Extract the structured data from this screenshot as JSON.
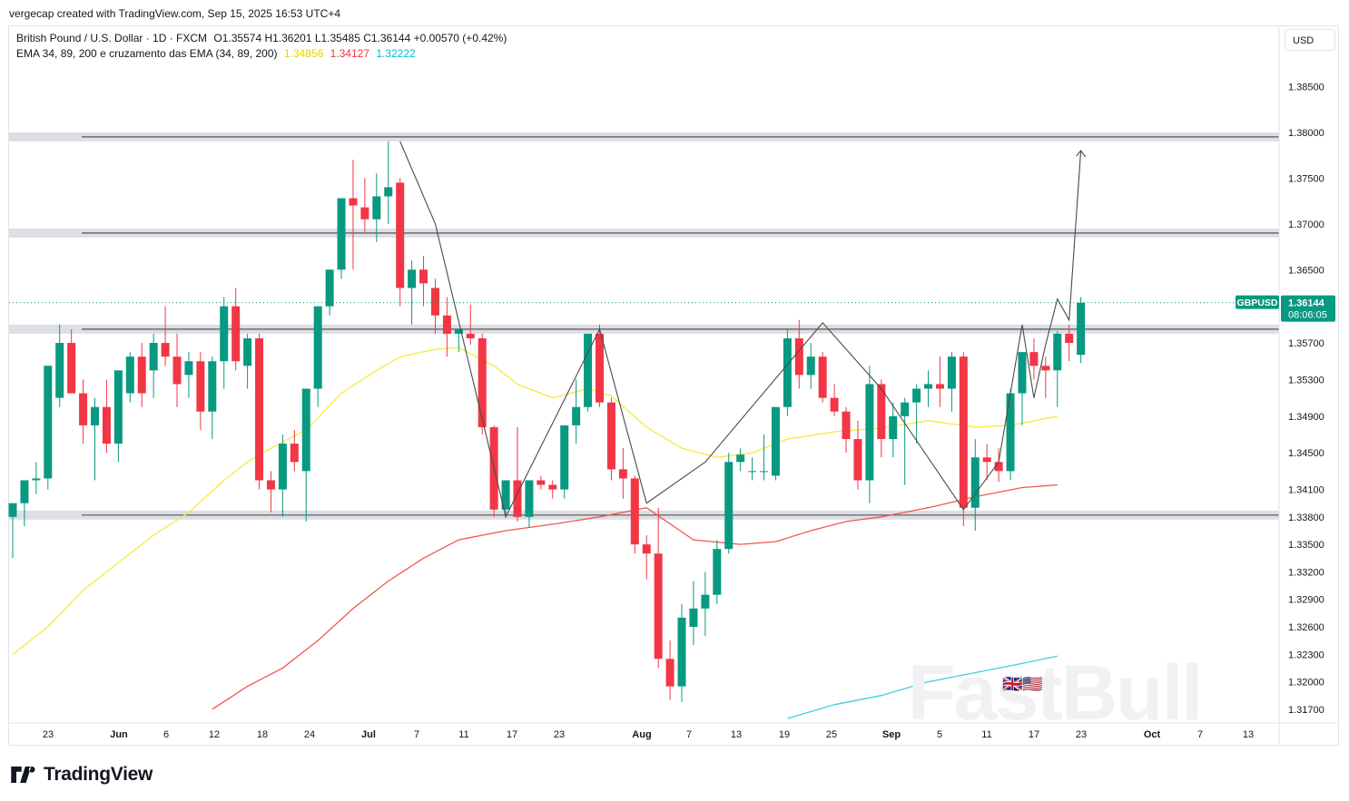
{
  "caption": "vergecap created with TradingView.com, Sep 15, 2025 16:53 UTC+4",
  "legend": {
    "symbol": "British Pound / U.S. Dollar · 1D · FXCM",
    "ohlc": "O1.35574  H1.36201  L1.35485  C1.36144  +0.00570 (+0.42%)",
    "indicator": "EMA 34, 89, 200 e cruzamento das EMA (34, 89, 200)",
    "ema34": "1.34856",
    "ema89": "1.34127",
    "ema200": "1.32222"
  },
  "currency_button": "USD",
  "price_label": {
    "ticker": "GBPUSD",
    "price": "1.36144",
    "countdown": "08:06:05"
  },
  "brand": "TradingView",
  "watermark": "FastBull",
  "colors": {
    "up": "#089981",
    "down": "#f23645",
    "ema34": "#f5ea3c",
    "ema89": "#f0574f",
    "ema200": "#3fd0d9",
    "zone": "#d1d4dc"
  },
  "chart_data": {
    "type": "candlestick",
    "ylim": [
      1.3155,
      1.3885
    ],
    "y_ticks": [
      "1.38500",
      "1.38000",
      "1.37500",
      "1.37000",
      "1.36500",
      "1.36144",
      "1.35700",
      "1.35300",
      "1.34900",
      "1.34500",
      "1.34100",
      "1.33800",
      "1.33500",
      "1.33200",
      "1.32900",
      "1.32600",
      "1.32300",
      "1.32000",
      "1.31700"
    ],
    "x_ticks": [
      "23",
      "Jun",
      "6",
      "12",
      "18",
      "24",
      "Jul",
      "7",
      "11",
      "17",
      "23",
      "Aug",
      "7",
      "13",
      "19",
      "25",
      "Sep",
      "5",
      "11",
      "17",
      "23",
      "Oct",
      "7",
      "13"
    ],
    "zones": [
      1.3795,
      1.369,
      1.3585,
      1.3382
    ],
    "candles": [
      [
        1.338,
        1.3395,
        1.3335,
        1.3395
      ],
      [
        1.3395,
        1.342,
        1.337,
        1.342
      ],
      [
        1.342,
        1.344,
        1.3405,
        1.3422
      ],
      [
        1.3422,
        1.3545,
        1.341,
        1.3545
      ],
      [
        1.351,
        1.359,
        1.35,
        1.357
      ],
      [
        1.357,
        1.3585,
        1.352,
        1.3515
      ],
      [
        1.3515,
        1.353,
        1.346,
        1.348
      ],
      [
        1.348,
        1.351,
        1.342,
        1.35
      ],
      [
        1.35,
        1.353,
        1.345,
        1.346
      ],
      [
        1.346,
        1.354,
        1.344,
        1.354
      ],
      [
        1.3515,
        1.356,
        1.3505,
        1.3555
      ],
      [
        1.3555,
        1.357,
        1.35,
        1.3515
      ],
      [
        1.354,
        1.358,
        1.351,
        1.357
      ],
      [
        1.357,
        1.361,
        1.3545,
        1.3555
      ],
      [
        1.3555,
        1.358,
        1.35,
        1.3525
      ],
      [
        1.3535,
        1.356,
        1.351,
        1.355
      ],
      [
        1.355,
        1.356,
        1.3475,
        1.3495
      ],
      [
        1.3495,
        1.3555,
        1.3465,
        1.355
      ],
      [
        1.355,
        1.362,
        1.352,
        1.361
      ],
      [
        1.361,
        1.363,
        1.354,
        1.355
      ],
      [
        1.3545,
        1.358,
        1.352,
        1.3575
      ],
      [
        1.3575,
        1.358,
        1.341,
        1.342
      ],
      [
        1.342,
        1.343,
        1.3385,
        1.341
      ],
      [
        1.341,
        1.347,
        1.338,
        1.346
      ],
      [
        1.346,
        1.3475,
        1.343,
        1.344
      ],
      [
        1.343,
        1.352,
        1.3375,
        1.352
      ],
      [
        1.352,
        1.361,
        1.35,
        1.361
      ],
      [
        1.361,
        1.365,
        1.36,
        1.365
      ],
      [
        1.365,
        1.3725,
        1.364,
        1.3728
      ],
      [
        1.3728,
        1.377,
        1.365,
        1.372
      ],
      [
        1.3718,
        1.375,
        1.369,
        1.3705
      ],
      [
        1.3705,
        1.3755,
        1.368,
        1.373
      ],
      [
        1.373,
        1.379,
        1.37,
        1.374
      ],
      [
        1.3745,
        1.375,
        1.361,
        1.363
      ],
      [
        1.363,
        1.366,
        1.359,
        1.365
      ],
      [
        1.365,
        1.3665,
        1.361,
        1.3635
      ],
      [
        1.363,
        1.364,
        1.358,
        1.36
      ],
      [
        1.36,
        1.362,
        1.3555,
        1.358
      ],
      [
        1.358,
        1.3585,
        1.356,
        1.3585
      ],
      [
        1.358,
        1.3612,
        1.3568,
        1.3575
      ],
      [
        1.3575,
        1.358,
        1.347,
        1.3478
      ],
      [
        1.3478,
        1.348,
        1.338,
        1.3388
      ],
      [
        1.3388,
        1.342,
        1.338,
        1.342
      ],
      [
        1.342,
        1.3478,
        1.3375,
        1.338
      ],
      [
        1.338,
        1.342,
        1.3368,
        1.342
      ],
      [
        1.342,
        1.3425,
        1.341,
        1.3415
      ],
      [
        1.3415,
        1.342,
        1.34,
        1.341
      ],
      [
        1.341,
        1.348,
        1.34,
        1.348
      ],
      [
        1.348,
        1.353,
        1.346,
        1.35
      ],
      [
        1.35,
        1.358,
        1.3495,
        1.358
      ],
      [
        1.358,
        1.359,
        1.35,
        1.3505
      ],
      [
        1.3505,
        1.351,
        1.342,
        1.3432
      ],
      [
        1.3432,
        1.3455,
        1.34,
        1.3422
      ],
      [
        1.3422,
        1.3425,
        1.334,
        1.335
      ],
      [
        1.335,
        1.336,
        1.3312,
        1.334
      ],
      [
        1.334,
        1.339,
        1.3215,
        1.3225
      ],
      [
        1.3225,
        1.3245,
        1.318,
        1.3195
      ],
      [
        1.3195,
        1.3285,
        1.3178,
        1.327
      ],
      [
        1.326,
        1.331,
        1.324,
        1.328
      ],
      [
        1.328,
        1.332,
        1.325,
        1.3295
      ],
      [
        1.3295,
        1.3355,
        1.3285,
        1.3345
      ],
      [
        1.3345,
        1.345,
        1.334,
        1.344
      ],
      [
        1.344,
        1.3455,
        1.343,
        1.3448
      ],
      [
        1.343,
        1.3445,
        1.342,
        1.343
      ],
      [
        1.343,
        1.347,
        1.342,
        1.343
      ],
      [
        1.3425,
        1.35,
        1.342,
        1.35
      ],
      [
        1.35,
        1.3585,
        1.349,
        1.3575
      ],
      [
        1.3575,
        1.3595,
        1.352,
        1.3535
      ],
      [
        1.3535,
        1.357,
        1.352,
        1.3555
      ],
      [
        1.3555,
        1.356,
        1.3505,
        1.351
      ],
      [
        1.351,
        1.3525,
        1.349,
        1.3495
      ],
      [
        1.3495,
        1.35,
        1.345,
        1.3465
      ],
      [
        1.3465,
        1.3485,
        1.341,
        1.342
      ],
      [
        1.342,
        1.3545,
        1.3395,
        1.3525
      ],
      [
        1.3525,
        1.353,
        1.3445,
        1.3465
      ],
      [
        1.3465,
        1.3505,
        1.3445,
        1.349
      ],
      [
        1.349,
        1.351,
        1.3415,
        1.3505
      ],
      [
        1.3505,
        1.3525,
        1.346,
        1.352
      ],
      [
        1.352,
        1.354,
        1.35,
        1.3525
      ],
      [
        1.3525,
        1.3555,
        1.35,
        1.352
      ],
      [
        1.352,
        1.356,
        1.3495,
        1.3555
      ],
      [
        1.3555,
        1.356,
        1.337,
        1.339
      ],
      [
        1.339,
        1.3465,
        1.3365,
        1.3445
      ],
      [
        1.3445,
        1.346,
        1.342,
        1.344
      ],
      [
        1.344,
        1.3455,
        1.3418,
        1.343
      ],
      [
        1.343,
        1.352,
        1.342,
        1.3515
      ],
      [
        1.3515,
        1.356,
        1.348,
        1.356
      ],
      [
        1.356,
        1.3575,
        1.353,
        1.3545
      ],
      [
        1.3545,
        1.3555,
        1.351,
        1.354
      ],
      [
        1.354,
        1.3583,
        1.35,
        1.358
      ],
      [
        1.358,
        1.359,
        1.355,
        1.357
      ],
      [
        1.3557,
        1.362,
        1.3548,
        1.3614
      ]
    ],
    "series": [
      {
        "name": "EMA 34",
        "color": "#f5ea3c",
        "points": [
          [
            0,
            1.323
          ],
          [
            3,
            1.326
          ],
          [
            6,
            1.33
          ],
          [
            9,
            1.333
          ],
          [
            12,
            1.336
          ],
          [
            15,
            1.3385
          ],
          [
            18,
            1.342
          ],
          [
            20,
            1.344
          ],
          [
            22,
            1.3455
          ],
          [
            25,
            1.3475
          ],
          [
            28,
            1.3515
          ],
          [
            31,
            1.354
          ],
          [
            33,
            1.3555
          ],
          [
            36,
            1.3563
          ],
          [
            38,
            1.3565
          ],
          [
            41,
            1.3545
          ],
          [
            43,
            1.3525
          ],
          [
            46,
            1.351
          ],
          [
            49,
            1.352
          ],
          [
            51,
            1.3512
          ],
          [
            54,
            1.3478
          ],
          [
            57,
            1.3455
          ],
          [
            60,
            1.3445
          ],
          [
            63,
            1.345
          ],
          [
            66,
            1.3465
          ],
          [
            70,
            1.3473
          ],
          [
            74,
            1.3477
          ],
          [
            78,
            1.3485
          ],
          [
            82,
            1.3478
          ],
          [
            85,
            1.348
          ],
          [
            89,
            1.349
          ]
        ]
      },
      {
        "name": "EMA 89",
        "color": "#f0574f",
        "points": [
          [
            17,
            1.317
          ],
          [
            20,
            1.3195
          ],
          [
            23,
            1.3215
          ],
          [
            26,
            1.3245
          ],
          [
            29,
            1.328
          ],
          [
            32,
            1.331
          ],
          [
            35,
            1.3335
          ],
          [
            38,
            1.3355
          ],
          [
            42,
            1.3365
          ],
          [
            46,
            1.3372
          ],
          [
            50,
            1.338
          ],
          [
            54,
            1.339
          ],
          [
            58,
            1.3355
          ],
          [
            62,
            1.335
          ],
          [
            65,
            1.3353
          ],
          [
            68,
            1.3365
          ],
          [
            71,
            1.3375
          ],
          [
            74,
            1.338
          ],
          [
            78,
            1.339
          ],
          [
            82,
            1.3402
          ],
          [
            86,
            1.3412
          ],
          [
            89,
            1.3415
          ]
        ]
      },
      {
        "name": "EMA 200",
        "color": "#3fd0d9",
        "points": [
          [
            66,
            1.316
          ],
          [
            70,
            1.3175
          ],
          [
            74,
            1.3185
          ],
          [
            78,
            1.32
          ],
          [
            82,
            1.321
          ],
          [
            86,
            1.322
          ],
          [
            89,
            1.3228
          ]
        ]
      }
    ],
    "drawing": [
      [
        33,
        1.379
      ],
      [
        36,
        1.37
      ],
      [
        42,
        1.338
      ],
      [
        50,
        1.3585
      ],
      [
        54,
        1.3395
      ],
      [
        59,
        1.344
      ],
      [
        69,
        1.3592
      ],
      [
        74,
        1.352
      ],
      [
        81,
        1.3388
      ],
      [
        84,
        1.344
      ],
      [
        86,
        1.359
      ],
      [
        87,
        1.351
      ],
      [
        88,
        1.3568
      ],
      [
        89,
        1.3618
      ],
      [
        90,
        1.3595
      ],
      [
        91,
        1.378
      ]
    ]
  }
}
